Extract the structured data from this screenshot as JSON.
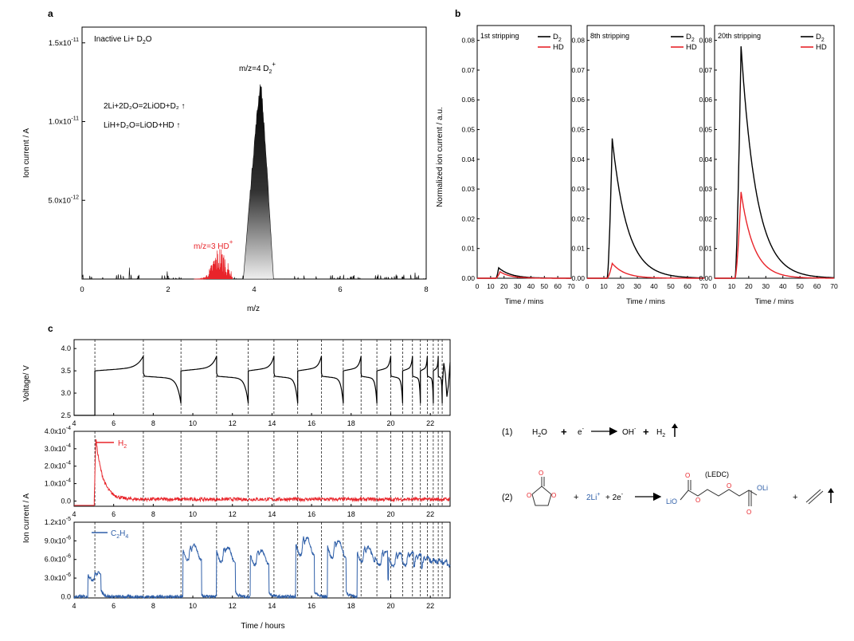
{
  "panels": {
    "a": {
      "letter": "a",
      "xlabel": "m/z",
      "ylabel": "Ion current / A",
      "xticks": [
        "0",
        "2",
        "4",
        "6",
        "8"
      ],
      "ytick_mantissa": [
        "5.0x10",
        "1.0x10",
        "1.5x10"
      ],
      "ytick_exp": [
        "-12",
        "-11",
        "-11"
      ],
      "title_main": "Inactive  Li+ D",
      "title_sub": "2",
      "title_end": "O",
      "eq1": "2Li+2D₂O=2LiOD+D₂ ↑",
      "eq2": "LiH+D₂O=LiOD+HD ↑",
      "label_d2": "m/z=4 D",
      "label_d2_sub": "2",
      "label_d2_sup": "+",
      "label_hd": "m/z=3 HD",
      "label_hd_sup": "+"
    },
    "b": {
      "letter": "b",
      "ylabel": "Normalized ion current / a.u.",
      "xlabel": "Time / mins",
      "xticks": [
        "0",
        "10",
        "20",
        "30",
        "40",
        "50",
        "60",
        "70"
      ],
      "yticks": [
        "0.00",
        "0.01",
        "0.02",
        "0.03",
        "0.04",
        "0.05",
        "0.06",
        "0.07",
        "0.08"
      ],
      "subplots": [
        "1st stripping",
        "8th stripping",
        "20th stripping"
      ],
      "legend": [
        "D",
        "HD"
      ]
    },
    "c": {
      "letter": "c",
      "xlabel": "Time / hours",
      "xticks": [
        "4",
        "6",
        "8",
        "10",
        "12",
        "14",
        "16",
        "18",
        "20",
        "22"
      ],
      "v_ylabel": "Voltage/ V",
      "v_yticks": [
        "2.5",
        "3.0",
        "3.5",
        "4.0"
      ],
      "ion_ylabel": "Ion current / A",
      "h2_yticks": [
        "0.0",
        "1.0x10",
        "2.0x10",
        "3.0x10",
        "4.0x10"
      ],
      "h2_exp": "-4",
      "h2_label": "H",
      "h2_sub": "2",
      "c2h4_yticks": [
        "0.0",
        "3.0x10",
        "6.0x10",
        "9.0x10",
        "1.2x10"
      ],
      "c2h4_exp": [
        "",
        "-6",
        "-6",
        "-6",
        "-5"
      ],
      "c2h4_label": "C",
      "c2h4_sub1": "2",
      "c2h4_mid": "H",
      "c2h4_sub2": "4"
    },
    "rxn": {
      "r1_num": "(1)",
      "r1_h2o": "H",
      "r1_h2o_sub": "2",
      "r1_h2o_end": "O",
      "r1_plus": "+",
      "r1_e": "e",
      "r1_e_sup": "-",
      "r1_oh": "OH",
      "r1_oh_sup": "-",
      "r1_plus2": "+",
      "r1_h2": "H",
      "r1_h2_sub": "2",
      "r2_num": "(2)",
      "r2_plus": "+",
      "r2_li": "2Li",
      "r2_li_sup": "+",
      "r2_plus2": "+ 2e",
      "r2_e_sup": "-",
      "ledc": "(LEDC)",
      "r2_plus3": "+",
      "lio": "LiO",
      "oli": "OLi",
      "o": "O"
    }
  },
  "colors": {
    "black": "#000000",
    "red": "#e8242a",
    "blue": "#2f5fa8",
    "grid": "#000000"
  },
  "chart_data": [
    {
      "panel": "a",
      "type": "area",
      "xlabel": "m/z",
      "ylabel": "Ion current / A",
      "xlim": [
        0,
        8
      ],
      "ylim": [
        0,
        1.6e-11
      ],
      "series": [
        {
          "name": "m/z=4 D2+",
          "peak_x": 4.15,
          "peak_y": 1.28e-11,
          "x_range": [
            3.75,
            4.45
          ]
        },
        {
          "name": "m/z=3 HD+",
          "peak_x": 3.2,
          "peak_y": 1.8e-12,
          "x_range": [
            2.6,
            3.5
          ]
        }
      ]
    },
    {
      "panel": "b",
      "type": "line",
      "xlabel": "Time / mins",
      "ylabel": "Normalized ion current / a.u.",
      "xlim": [
        0,
        70
      ],
      "ylim": [
        0,
        0.085
      ],
      "subplots": [
        {
          "title": "1st stripping",
          "series": [
            {
              "name": "D2",
              "onset": 14,
              "peak_x": 16,
              "peak_y": 0.0035
            },
            {
              "name": "HD",
              "onset": 14,
              "peak_x": 17,
              "peak_y": 0.0022
            }
          ]
        },
        {
          "title": "8th stripping",
          "series": [
            {
              "name": "D2",
              "onset": 12,
              "peak_x": 15,
              "peak_y": 0.047
            },
            {
              "name": "HD",
              "onset": 12,
              "peak_x": 15,
              "peak_y": 0.005
            }
          ]
        },
        {
          "title": "20th stripping",
          "series": [
            {
              "name": "D2",
              "onset": 12,
              "peak_x": 15.5,
              "peak_y": 0.078
            },
            {
              "name": "HD",
              "onset": 12,
              "peak_x": 15.5,
              "peak_y": 0.029
            }
          ]
        }
      ]
    },
    {
      "panel": "c",
      "type": "line",
      "xlabel": "Time / hours",
      "xlim": [
        4,
        23
      ],
      "cycle_boundaries": [
        5.05,
        7.5,
        9.4,
        11.2,
        12.8,
        14.1,
        15.3,
        16.5,
        17.6,
        18.5,
        19.3,
        20.0,
        20.6,
        21.1,
        21.5,
        21.85,
        22.15,
        22.4,
        22.6
      ],
      "subplots": [
        {
          "ylabel": "Voltage/ V",
          "ylim": [
            2.5,
            4.2
          ],
          "series": [
            {
              "name": "Voltage",
              "baseline": 3.35
            }
          ]
        },
        {
          "ylabel": "Ion current / A",
          "ylim": [
            -3e-05,
            0.0004
          ],
          "series": [
            {
              "name": "H2",
              "peak_x": 5.1,
              "peak_y": 0.00036,
              "tail": 1e-05
            }
          ]
        },
        {
          "ylabel": "Ion current / A",
          "ylim": [
            -2e-07,
            1.2e-05
          ],
          "series": [
            {
              "name": "C2H4",
              "peaks": [
                {
                  "x": 5.1,
                  "y": 3.9e-06
                },
                {
                  "x": 9.9,
                  "y": 8.3e-06
                },
                {
                  "x": 11.6,
                  "y": 8e-06
                },
                {
                  "x": 13.3,
                  "y": 7.5e-06
                },
                {
                  "x": 15.6,
                  "y": 9.5e-06
                },
                {
                  "x": 17.2,
                  "y": 9e-06
                },
                {
                  "x": 18.7,
                  "y": 8e-06
                },
                {
                  "x": 19.6,
                  "y": 7.3e-06
                },
                {
                  "x": 20.3,
                  "y": 7e-06
                },
                {
                  "x": 20.9,
                  "y": 7.2e-06
                },
                {
                  "x": 21.3,
                  "y": 6.8e-06
                },
                {
                  "x": 21.7,
                  "y": 6.4e-06
                },
                {
                  "x": 22.0,
                  "y": 6e-06
                },
                {
                  "x": 22.3,
                  "y": 5.9e-06
                },
                {
                  "x": 22.6,
                  "y": 5.8e-06
                },
                {
                  "x": 22.9,
                  "y": 5.3e-06
                }
              ]
            }
          ]
        }
      ]
    }
  ]
}
